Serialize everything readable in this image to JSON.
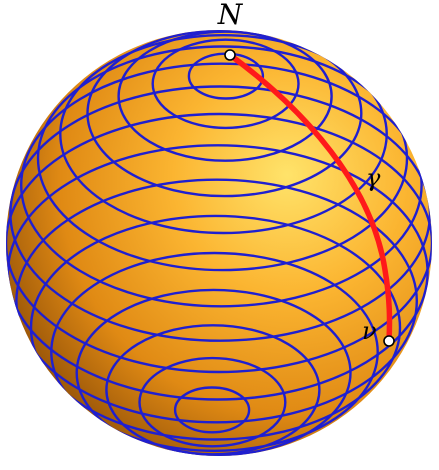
{
  "labels": {
    "pole": "N",
    "curve": "γ",
    "point": "ν"
  },
  "colors": {
    "sphere_highlight": "#ffe36a",
    "sphere_mid": "#f5a623",
    "sphere_shadow": "#8a4a06",
    "latitude_lines": "#1f1fd0",
    "geodesic": "#ff1a1a",
    "points_fill": "#ffffff",
    "points_stroke": "#000000"
  }
}
